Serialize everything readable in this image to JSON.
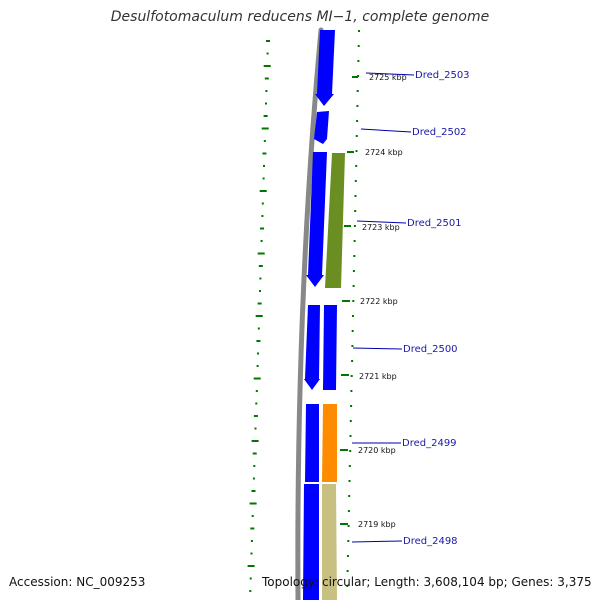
{
  "title": "Desulfotomaculum reducens MI−1, complete genome",
  "footer": {
    "accession": "Accession: NC_009253",
    "topology": "Topology: circular; Length: 3,608,104 bp; Genes: 3,375"
  },
  "colors": {
    "backbone": "#888888",
    "cds": "#0000ff",
    "gene_green": "#6b8e23",
    "gene_orange": "#ff8c00",
    "gene_khaki": "#c8c080",
    "tick_green": "#007700",
    "label_line": "#0000aa",
    "label_text": "#1a1aa8"
  },
  "ticks": [
    "2725 kbp",
    "2724 kbp",
    "2723 kbp",
    "2722 kbp",
    "2721 kbp",
    "2720 kbp",
    "2719 kbp"
  ],
  "gene_labels": [
    "Dred_2503",
    "Dred_2502",
    "Dred_2501",
    "Dred_2500",
    "Dred_2499",
    "Dred_2498"
  ]
}
